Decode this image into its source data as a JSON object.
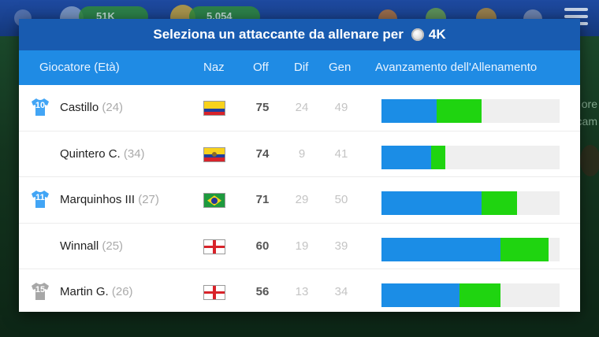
{
  "background": {
    "stat_a": "51K",
    "stat_b": "5.054",
    "side_text_a": "ore",
    "side_text_b": "cam"
  },
  "modal": {
    "title_prefix": "Seleziona un attaccante da allenare per",
    "cost": "4K",
    "columns": {
      "player": "Giocatore (Età)",
      "nation": "Naz",
      "off": "Off",
      "dif": "Dif",
      "gen": "Gen",
      "progress": "Avanzamento dell'Allenamento"
    },
    "players": [
      {
        "name": "Castillo",
        "age": "(24)",
        "shirt": "10",
        "shirt_color": "#42a5f5",
        "flag": "colombia",
        "off": "75",
        "dif": "24",
        "gen": "49",
        "progress_base": 0.31,
        "progress_gain": 0.25
      },
      {
        "name": "Quintero C.",
        "age": "(34)",
        "shirt": "",
        "shirt_color": "",
        "flag": "ecuador",
        "off": "74",
        "dif": "9",
        "gen": "41",
        "progress_base": 0.28,
        "progress_gain": 0.08
      },
      {
        "name": "Marquinhos III",
        "age": "(27)",
        "shirt": "11",
        "shirt_color": "#42a5f5",
        "flag": "brazil",
        "off": "71",
        "dif": "29",
        "gen": "50",
        "progress_base": 0.56,
        "progress_gain": 0.2
      },
      {
        "name": "Winnall",
        "age": "(25)",
        "shirt": "",
        "shirt_color": "",
        "flag": "england",
        "off": "60",
        "dif": "19",
        "gen": "39",
        "progress_base": 0.67,
        "progress_gain": 0.27
      },
      {
        "name": "Martin G.",
        "age": "(26)",
        "shirt": "15",
        "shirt_color": "#a7a7a7",
        "flag": "england",
        "off": "56",
        "dif": "13",
        "gen": "34",
        "progress_base": 0.44,
        "progress_gain": 0.23
      }
    ]
  }
}
